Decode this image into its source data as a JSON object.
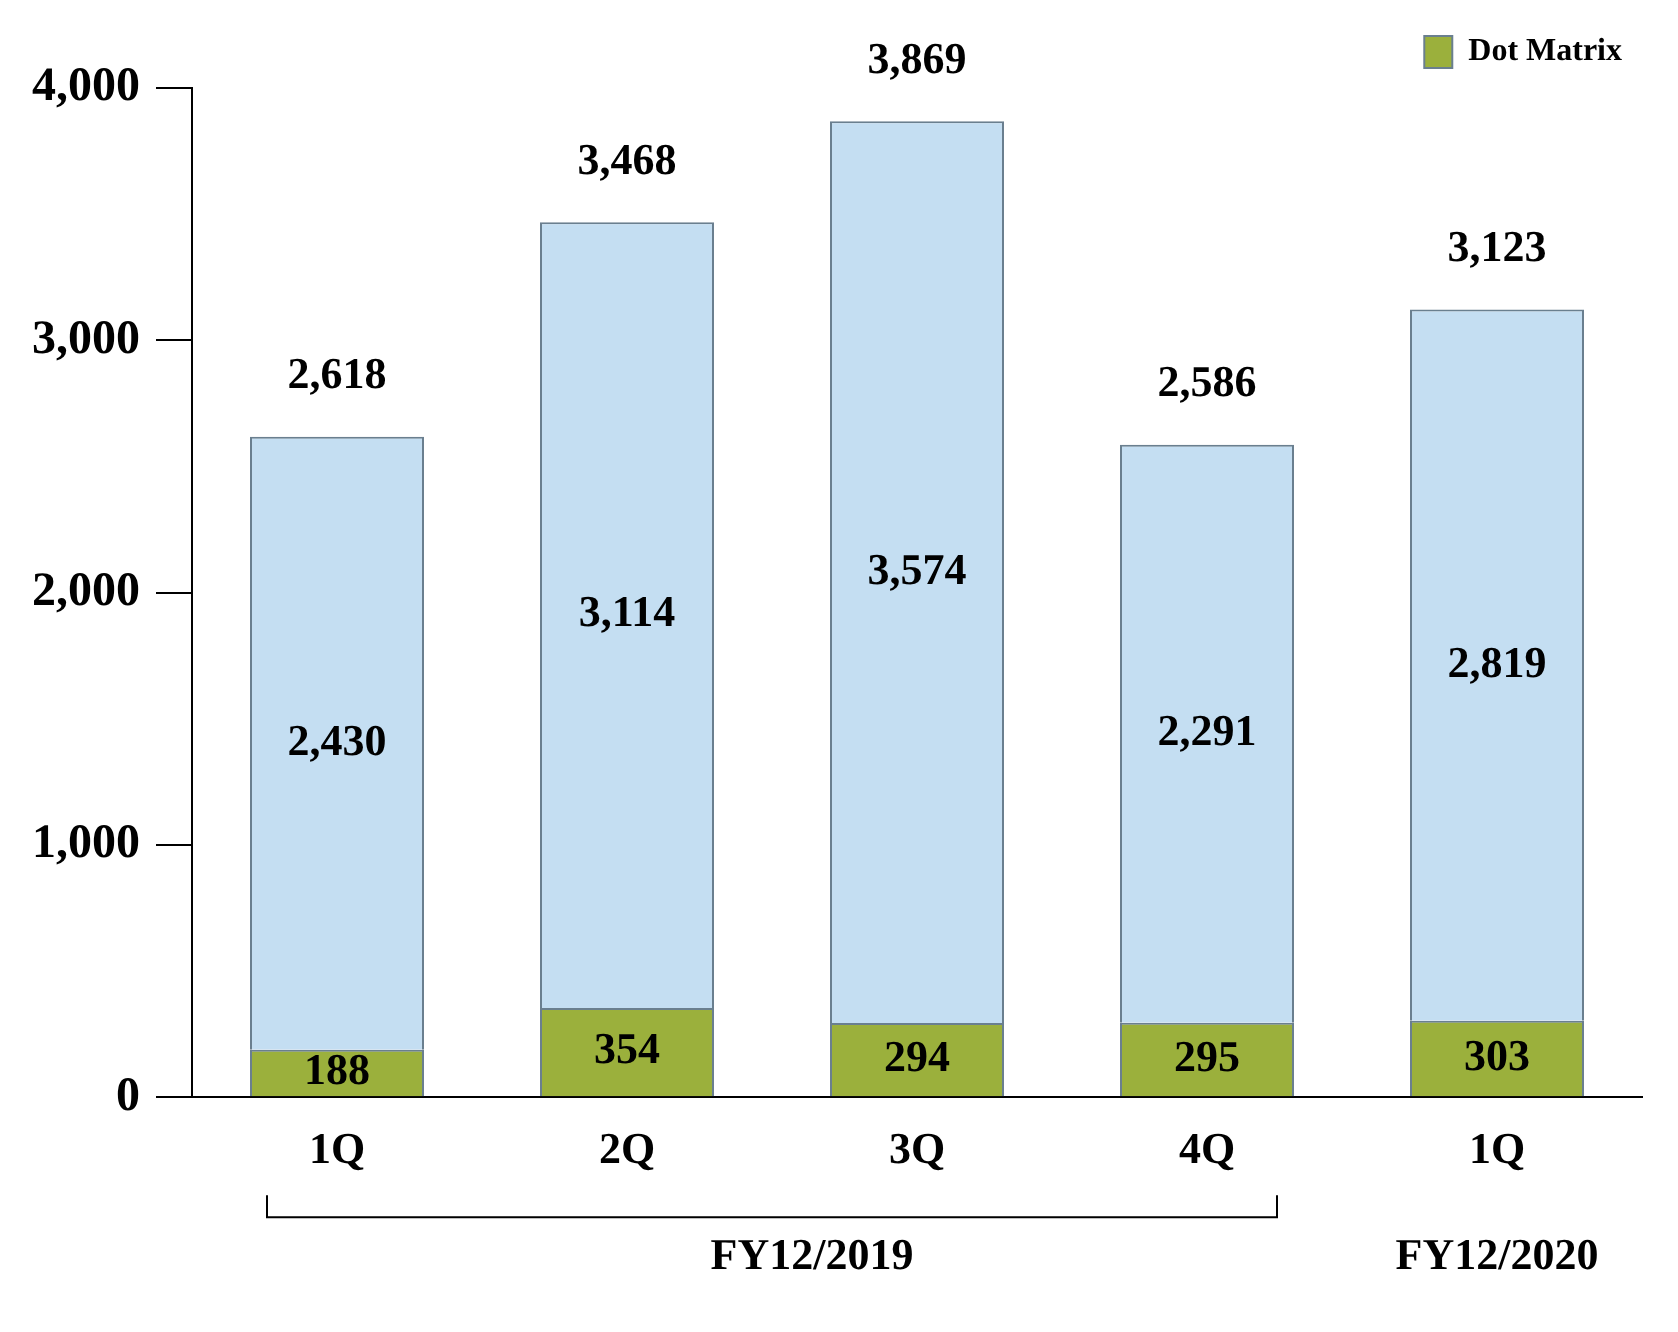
{
  "chart_data": {
    "type": "bar",
    "stacked": true,
    "categories": [
      "1Q",
      "2Q",
      "3Q",
      "4Q",
      "1Q"
    ],
    "series": [
      {
        "name": "Dot Matrix",
        "color": "#9bb03c",
        "values": [
          188,
          354,
          294,
          295,
          303
        ],
        "value_labels": [
          "188",
          "354",
          "294",
          "295",
          "303"
        ]
      },
      {
        "color": "#c4def2",
        "values": [
          2430,
          3114,
          3574,
          2291,
          2819
        ],
        "value_labels": [
          "2,430",
          "3,114",
          "3,574",
          "2,291",
          "2,819"
        ]
      }
    ],
    "totals": [
      "2,618",
      "3,468",
      "3,869",
      "2,586",
      "3,123"
    ],
    "ylim": [
      0,
      4000
    ],
    "yticks": [
      0,
      {
        "value": 1000,
        "label": "1,000"
      },
      {
        "value": 2000,
        "label": "2,000"
      },
      {
        "value": 3000,
        "label": "3,000"
      },
      {
        "value": 4000,
        "label": "4,000"
      }
    ],
    "grid": false,
    "legend": "top right",
    "annotations": [
      "FY12/2019",
      "FY12/2020"
    ]
  }
}
